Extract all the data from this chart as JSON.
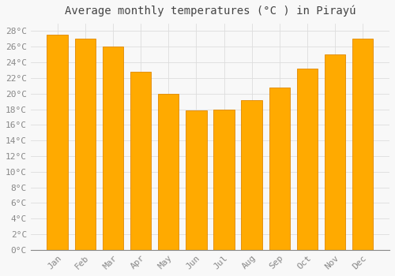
{
  "title": "Average monthly temperatures (°C ) in Pirayú",
  "months": [
    "Jan",
    "Feb",
    "Mar",
    "Apr",
    "May",
    "Jun",
    "Jul",
    "Aug",
    "Sep",
    "Oct",
    "Nov",
    "Dec"
  ],
  "values": [
    27.5,
    27.0,
    26.0,
    22.8,
    20.0,
    17.8,
    18.0,
    19.2,
    20.8,
    23.2,
    25.0,
    27.0
  ],
  "bar_color_fill": "#FFAA00",
  "bar_color_edge": "#E08800",
  "background_color": "#F8F8F8",
  "grid_color": "#DDDDDD",
  "tick_color": "#888888",
  "title_color": "#444444",
  "ylim": [
    0,
    29
  ],
  "ytick_values": [
    0,
    2,
    4,
    6,
    8,
    10,
    12,
    14,
    16,
    18,
    20,
    22,
    24,
    26,
    28
  ],
  "title_fontsize": 10,
  "tick_fontsize": 8,
  "bar_width": 0.75
}
